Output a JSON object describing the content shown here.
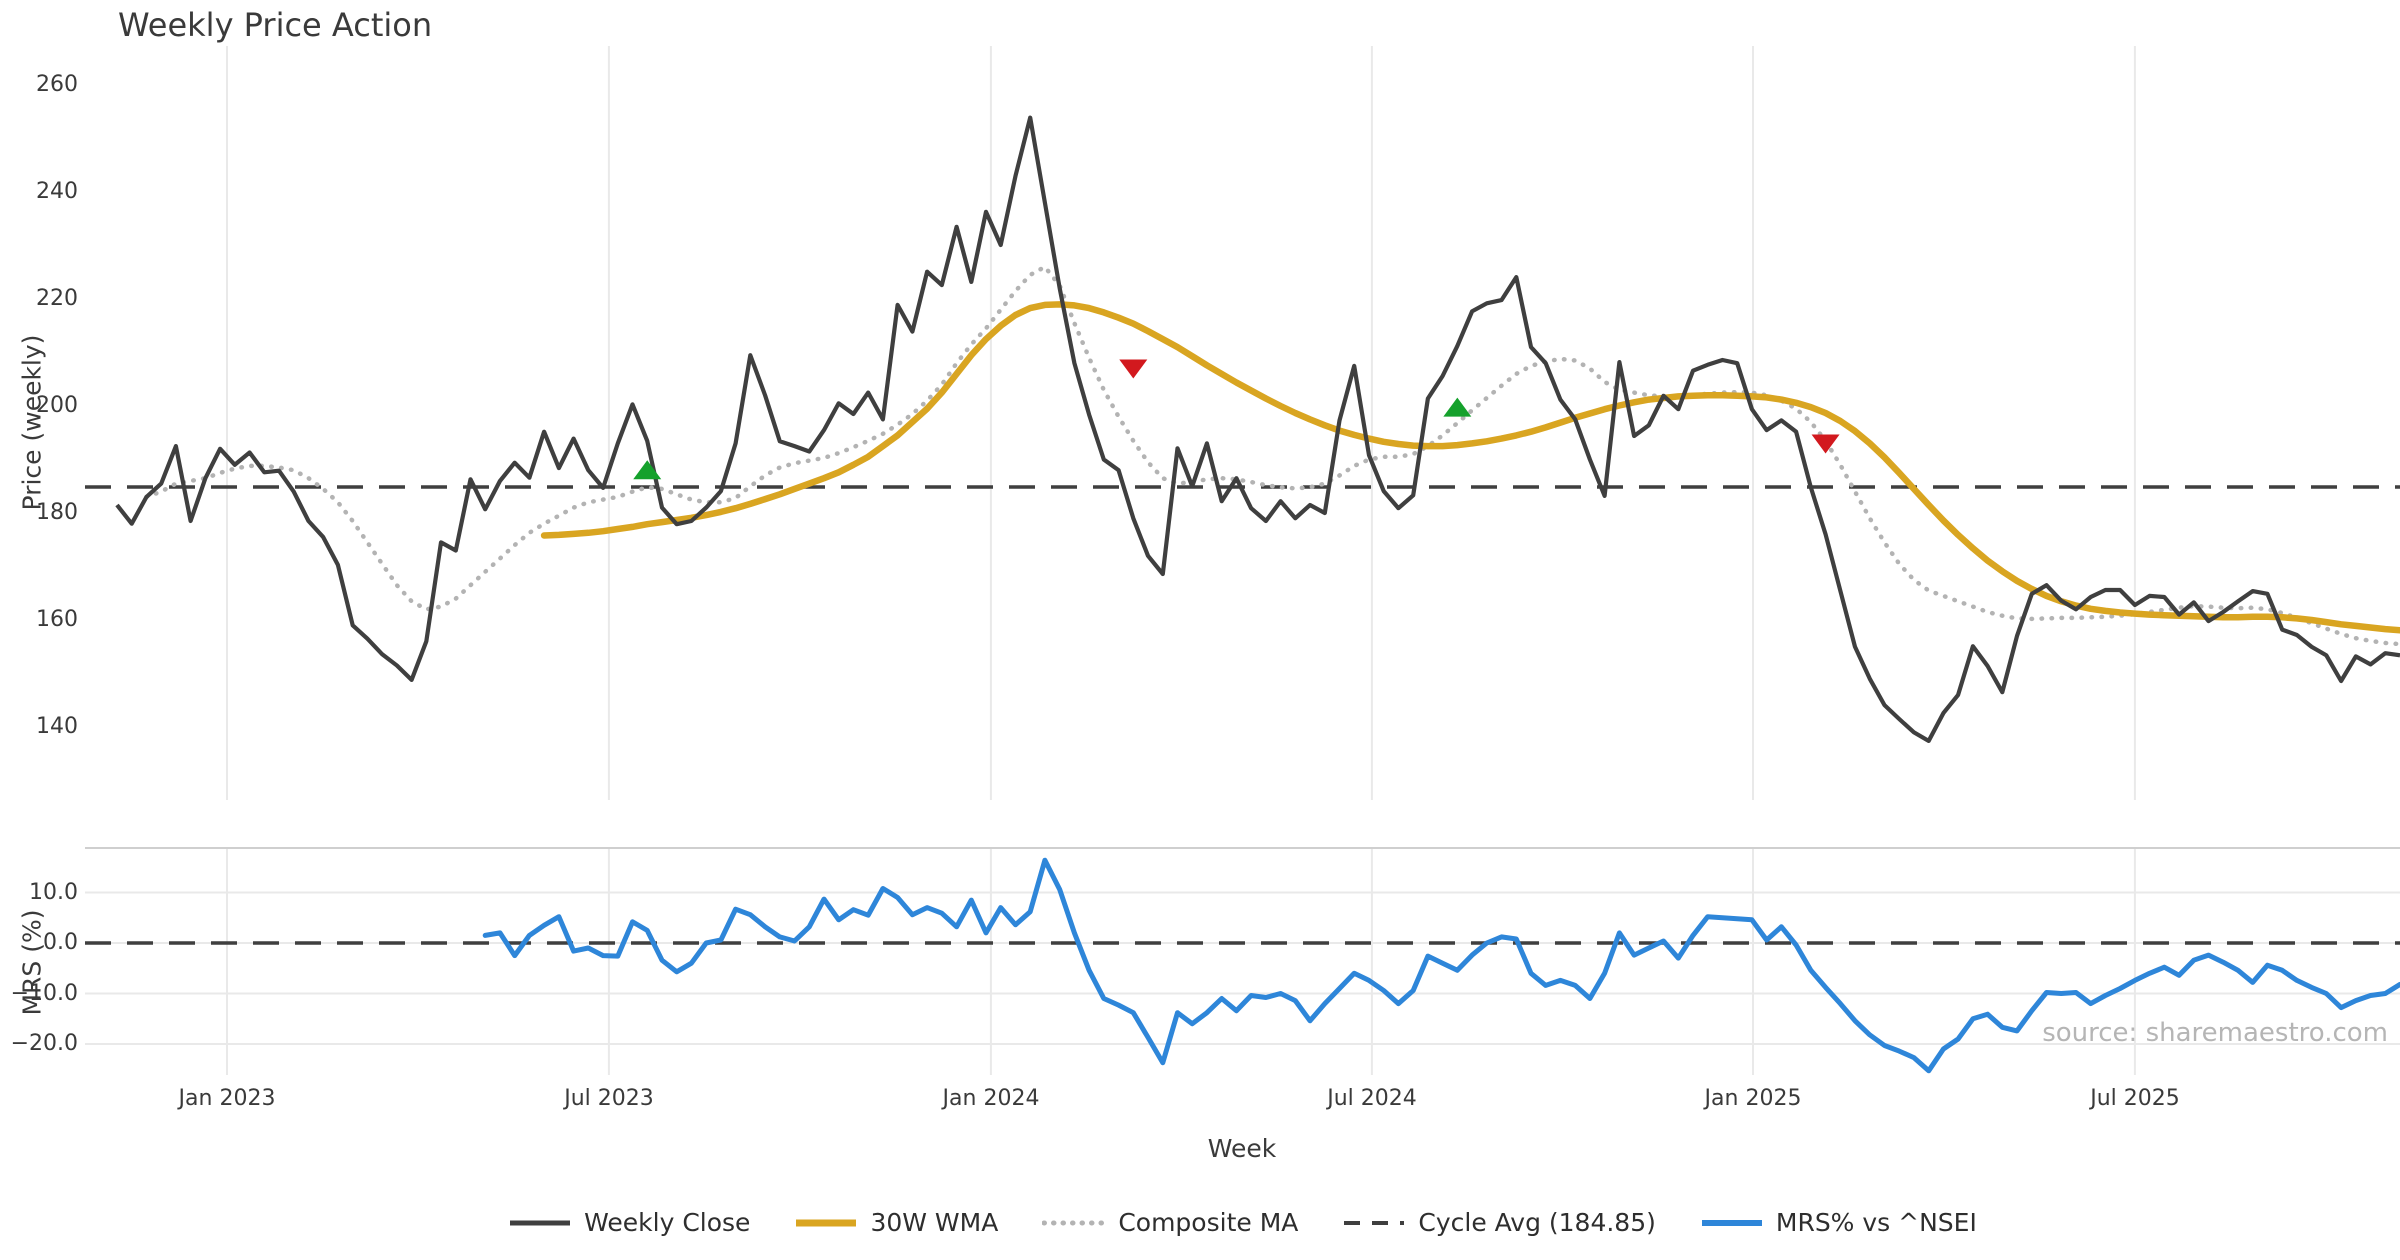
{
  "title": "Weekly Price Action",
  "watermark": "source: sharemaestro.com",
  "axes": {
    "x_label": "Week",
    "price_label": "Price (weekly)",
    "mrs_label": "MRS (%)",
    "x_ticks": [
      {
        "week": 7.47,
        "label": "Jan 2023"
      },
      {
        "week": 33.4,
        "label": "Jul 2023"
      },
      {
        "week": 59.33,
        "label": "Jan 2024"
      },
      {
        "week": 85.2,
        "label": "Jul 2024"
      },
      {
        "week": 111.07,
        "label": "Jan 2025"
      },
      {
        "week": 137.0,
        "label": "Jul 2025"
      }
    ],
    "price_ticks": [
      {
        "value": 260,
        "label": "260"
      },
      {
        "value": 240,
        "label": "240"
      },
      {
        "value": 220,
        "label": "220"
      },
      {
        "value": 200,
        "label": "200"
      },
      {
        "value": 180,
        "label": "180"
      },
      {
        "value": 160,
        "label": "160"
      },
      {
        "value": 140,
        "label": "140"
      }
    ],
    "mrs_ticks": [
      {
        "value": 10,
        "label": "10.0"
      },
      {
        "value": 0,
        "label": "0.0"
      },
      {
        "value": -10,
        "label": "−10.0"
      },
      {
        "value": -20,
        "label": "−20.0"
      }
    ]
  },
  "legend": [
    {
      "label": "Weekly Close",
      "color": "#3f3f3f",
      "style": "solid",
      "width": 5
    },
    {
      "label": "30W WMA",
      "color": "#D9A521",
      "style": "solid",
      "width": 7
    },
    {
      "label": "Composite MA",
      "color": "#b3b3b3",
      "style": "dotted",
      "width": 5
    },
    {
      "label": "Cycle Avg (184.85)",
      "color": "#3f3f3f",
      "style": "dashed",
      "width": 4
    },
    {
      "label": "MRS% vs ^NSEI",
      "color": "#2E86D9",
      "style": "solid",
      "width": 6
    }
  ],
  "colors": {
    "background": "#ffffff",
    "grid": "#e9e9e9",
    "spine": "#cfcfcf",
    "text": "#3a3a3a",
    "watermark": "#b5b5b5",
    "weekly_close": "#3f3f3f",
    "wma30": "#D9A521",
    "composite": "#b3b3b3",
    "cycle_avg": "#3f3f3f",
    "mrs": "#2E86D9",
    "buy": "#15A12C",
    "sell": "#D2191E"
  },
  "chart_data": [
    {
      "type": "line",
      "panel": "price",
      "title": "Weekly Price Action",
      "xlabel": "Week",
      "ylabel": "Price (weekly)",
      "start_date": "2022-11-14",
      "freq_days": 7,
      "ylim": [
        126.2,
        267.1
      ],
      "cycle_avg": 184.85,
      "grid": "vertical-only",
      "series": [
        {
          "name": "Weekly Close",
          "start_week": 0,
          "values": [
            181.5,
            178,
            183,
            185.5,
            192.5,
            178.5,
            186.5,
            192,
            189,
            191.3,
            187.6,
            187.9,
            184,
            178.5,
            175.5,
            170.3,
            159,
            156.5,
            153.6,
            151.5,
            148.8,
            156,
            174.5,
            173,
            186.3,
            180.7,
            186,
            189.4,
            186.6,
            195.2,
            188.4,
            193.9,
            188,
            184.7,
            193,
            200.3,
            193.5,
            181,
            177.9,
            178.5,
            181,
            184.1,
            193,
            209.5,
            202,
            193.4,
            192.5,
            191.5,
            195.5,
            200.5,
            198.5,
            202.5,
            197.5,
            218.9,
            213.9,
            225.1,
            222.6,
            233.5,
            223.2,
            236.3,
            230.1,
            243,
            253.9,
            238,
            222,
            208,
            198.4,
            190,
            188,
            179,
            172,
            168.6,
            192.1,
            185,
            193,
            182.2,
            186.5,
            180.9,
            178.5,
            182.2,
            179,
            181.5,
            180,
            197.3,
            207.5,
            190.8,
            184.1,
            180.9,
            183.3,
            201.4,
            205.6,
            211.2,
            217.7,
            219.2,
            219.8,
            224.1,
            211,
            208,
            201.2,
            197.5,
            190,
            183.2,
            208.2,
            194.4,
            196.4,
            201.9,
            199.4,
            206.6,
            207.7,
            208.6,
            208,
            199.4,
            195.5,
            197.3,
            195.2,
            184.8,
            176,
            165.5,
            155,
            149,
            144.1,
            141.5,
            139,
            137.4,
            142.6,
            146,
            155.1,
            151.4,
            146.5,
            157,
            164.9,
            166.5,
            163.6,
            162,
            164.3,
            165.6,
            165.6,
            162.8,
            164.5,
            164.3,
            161,
            163.3,
            159.8,
            161.5,
            163.5,
            165.4,
            164.9,
            158.2,
            157.2,
            155,
            153.4,
            148.6,
            153.2,
            151.7,
            153.8,
            153.4
          ]
        },
        {
          "name": "30W WMA",
          "start_week": 29,
          "values": [
            175.8,
            175.9,
            176.1,
            176.3,
            176.6,
            177,
            177.4,
            177.9,
            178.3,
            178.7,
            179.1,
            179.6,
            180.2,
            180.9,
            181.7,
            182.6,
            183.5,
            184.5,
            185.5,
            186.5,
            187.6,
            189,
            190.5,
            192.5,
            194.5,
            197,
            199.5,
            202.5,
            206,
            209.5,
            212.5,
            215,
            217,
            218.3,
            218.9,
            219,
            218.8,
            218.3,
            217.5,
            216.5,
            215.4,
            214,
            212.5,
            211,
            209.3,
            207.6,
            206,
            204.4,
            202.9,
            201.4,
            200,
            198.7,
            197.5,
            196.4,
            195.4,
            194.6,
            193.9,
            193.3,
            192.9,
            192.6,
            192.5,
            192.5,
            192.7,
            193,
            193.4,
            193.9,
            194.5,
            195.2,
            196,
            196.9,
            197.8,
            198.6,
            199.4,
            200.1,
            200.7,
            201.2,
            201.5,
            201.8,
            201.9,
            202,
            202,
            201.9,
            201.8,
            201.6,
            201.2,
            200.6,
            199.8,
            198.7,
            197.2,
            195.3,
            193,
            190.4,
            187.5,
            184.5,
            181.5,
            178.6,
            175.9,
            173.4,
            171.1,
            169.1,
            167.3,
            165.8,
            164.5,
            163.5,
            162.7,
            162.1,
            161.7,
            161.4,
            161.2,
            161,
            160.9,
            160.8,
            160.7,
            160.6,
            160.5,
            160.5,
            160.6,
            160.6,
            160.5,
            160.3,
            160,
            159.6,
            159.2,
            158.9,
            158.6,
            158.3,
            158.1
          ]
        },
        {
          "name": "Composite MA",
          "start_week": 2,
          "values": [
            183,
            184,
            185.5,
            186,
            186.5,
            187.5,
            188.3,
            188.8,
            188.8,
            188.5,
            188,
            186.5,
            184.5,
            182,
            178.5,
            174.5,
            170.5,
            166.5,
            163.5,
            162,
            162.5,
            164,
            166.5,
            169,
            171.5,
            174,
            176.3,
            178,
            179.5,
            181,
            182,
            182.5,
            183,
            184,
            184.8,
            184.5,
            183.5,
            182.5,
            182,
            182,
            182.8,
            185,
            187,
            188.5,
            189.3,
            189.8,
            190.3,
            191.2,
            192.3,
            193.5,
            194.8,
            196.5,
            198.5,
            201,
            204,
            208,
            211.5,
            214.5,
            218,
            221.5,
            224.5,
            226,
            222.5,
            215.5,
            209,
            203,
            198,
            193.5,
            189.5,
            186.5,
            185.5,
            185.8,
            186.3,
            186.5,
            186.3,
            185.8,
            185.2,
            184.8,
            184.6,
            184.8,
            185.5,
            187,
            188.8,
            190,
            190.5,
            190.5,
            191,
            192.5,
            194.5,
            196.8,
            199.2,
            201.5,
            203.8,
            206,
            207.5,
            208.3,
            208.8,
            208.5,
            207,
            204.5,
            203,
            202.5,
            202,
            201.8,
            201.8,
            202,
            202.3,
            202.5,
            202.6,
            202.5,
            202,
            201,
            199.5,
            197,
            193.5,
            189,
            184,
            179,
            174.5,
            170.5,
            167.5,
            165.5,
            164.5,
            163.5,
            162.5,
            161.5,
            160.8,
            160.3,
            160.2,
            160.3,
            160.4,
            160.4,
            160.5,
            160.6,
            160.8,
            161.1,
            161.5,
            161.9,
            162.3,
            162.6,
            162.5,
            162.3,
            162.2,
            162.3,
            162,
            161.3,
            160.4,
            159.4,
            158.4,
            157.4,
            156.6,
            156.1,
            155.7,
            155.5
          ]
        }
      ],
      "signals": {
        "buy": [
          {
            "week": 36,
            "value": 188
          },
          {
            "week": 91,
            "value": 199.7
          }
        ],
        "sell": [
          {
            "week": 69,
            "value": 207
          },
          {
            "week": 116,
            "value": 193
          }
        ]
      }
    },
    {
      "type": "line",
      "panel": "mrs",
      "ylabel": "MRS (%)",
      "ylim": [
        -26.4,
        18.6
      ],
      "zero_line": 0,
      "series": [
        {
          "name": "MRS% vs ^NSEI",
          "start_week": 25,
          "values": [
            1.5,
            2,
            -2.5,
            1.5,
            3.5,
            5.2,
            -1.6,
            -1,
            -2.5,
            -2.6,
            4.2,
            2.5,
            -3.4,
            -5.7,
            -4,
            0,
            0.6,
            6.7,
            5.6,
            3.2,
            1.2,
            0.4,
            3.2,
            8.7,
            4.6,
            6.6,
            5.5,
            10.8,
            9,
            5.6,
            7,
            5.9,
            3.2,
            8.5,
            2,
            7,
            3.6,
            6.2,
            16.4,
            10.6,
            2,
            -5.4,
            -11,
            -12.3,
            -13.8,
            -18.7,
            -23.7,
            -13.8,
            -16,
            -13.8,
            -11,
            -13.4,
            -10.4,
            -10.8,
            -10,
            -11.4,
            -15.4,
            -12,
            -9,
            -6,
            -7.4,
            -9.4,
            -12,
            -9.4,
            -2.6,
            -4,
            -5.4,
            -2.4,
            0,
            1.2,
            0.8,
            -6,
            -8.4,
            -7.4,
            -8.4,
            -11,
            -6,
            2,
            -2.4,
            -1,
            0.4,
            -3,
            1.5,
            5.2,
            5,
            4.8,
            4.6,
            0.6,
            3.2,
            -0.4,
            -5.4,
            -8.8,
            -12,
            -15.4,
            -18.2,
            -20.3,
            -21.4,
            -22.7,
            -25.3,
            -21,
            -19,
            -15,
            -14.1,
            -16.7,
            -17.4,
            -13.4,
            -9.8,
            -10,
            -9.8,
            -12,
            -10.4,
            -9,
            -7.4,
            -6,
            -4.8,
            -6.4,
            -3.4,
            -2.4,
            -3.8,
            -5.4,
            -7.8,
            -4.4,
            -5.4,
            -7.4,
            -8.8,
            -10,
            -12.8,
            -11.4,
            -10.4,
            -10,
            -8.2
          ]
        }
      ]
    }
  ]
}
